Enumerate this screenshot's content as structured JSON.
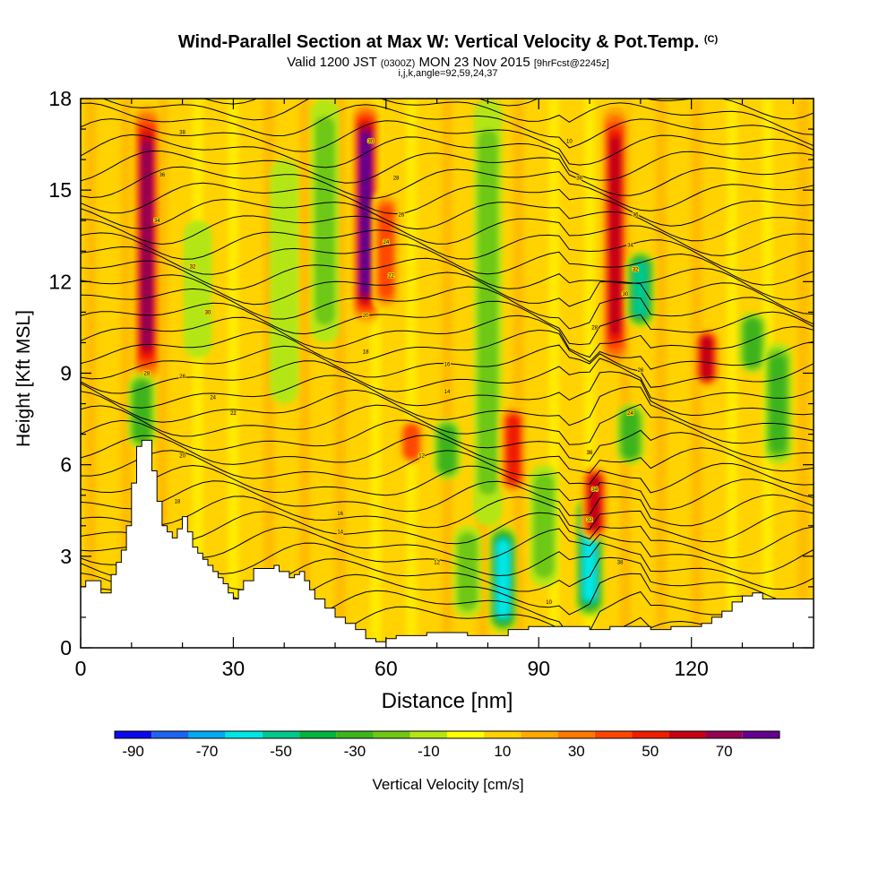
{
  "header": {
    "title": "Wind-Parallel Section at Max W: Vertical Velocity & Pot.Temp.",
    "title_tag": "(C)",
    "valid_prefix": "Valid 1200 JST",
    "valid_utc": "(0300Z)",
    "valid_date": "MON 23 Nov 2015",
    "forecast": "[9hrFcst@2245z]",
    "indices": "i,j,k,angle=92,59,24,37"
  },
  "chart_data": {
    "type": "heatmap",
    "xlabel": "Distance [nm]",
    "ylabel": "Height [Kft MSL]",
    "xlim": [
      0,
      144
    ],
    "ylim": [
      0,
      18
    ],
    "xticks": [
      "0",
      "30",
      "60",
      "90",
      "120"
    ],
    "yticks": [
      "0",
      "3",
      "6",
      "9",
      "12",
      "15",
      "18"
    ],
    "colorbar": {
      "label": "Vertical Velocity [cm/s]",
      "levels": [
        -90,
        -80,
        -70,
        -60,
        -50,
        -40,
        -30,
        -20,
        -10,
        0,
        10,
        20,
        30,
        40,
        50,
        60,
        70,
        80
      ],
      "tick_labels": [
        "-90",
        "-70",
        "-50",
        "-30",
        "-10",
        "10",
        "30",
        "50",
        "70"
      ],
      "colors": [
        "#0a0af0",
        "#1e64f0",
        "#00aaf0",
        "#00e6e6",
        "#00c88c",
        "#00b43c",
        "#3cb41e",
        "#6ec814",
        "#b4e614",
        "#ffff00",
        "#ffd200",
        "#ffaa00",
        "#ff7800",
        "#ff4600",
        "#f01e00",
        "#c80014",
        "#960050",
        "#64008c"
      ]
    },
    "terrain": [
      [
        0,
        2
      ],
      [
        1,
        2.2
      ],
      [
        2,
        2.2
      ],
      [
        4,
        1.8
      ],
      [
        6,
        2.4
      ],
      [
        7,
        2.8
      ],
      [
        8,
        3.2
      ],
      [
        9,
        4
      ],
      [
        10,
        5.4
      ],
      [
        11,
        6.6
      ],
      [
        12,
        6.8
      ],
      [
        13,
        6.8
      ],
      [
        14,
        5.8
      ],
      [
        15,
        4.8
      ],
      [
        16,
        4
      ],
      [
        17,
        3.8
      ],
      [
        18,
        3.6
      ],
      [
        19,
        3.9
      ],
      [
        20,
        4.3
      ],
      [
        21,
        3.8
      ],
      [
        22,
        3.3
      ],
      [
        23,
        3.1
      ],
      [
        24,
        2.9
      ],
      [
        25,
        2.7
      ],
      [
        26,
        2.5
      ],
      [
        27,
        2.3
      ],
      [
        28,
        2.1
      ],
      [
        29,
        1.8
      ],
      [
        30,
        1.6
      ],
      [
        31,
        1.9
      ],
      [
        32,
        2.2
      ],
      [
        34,
        2.6
      ],
      [
        36,
        2.6
      ],
      [
        38,
        2.7
      ],
      [
        39,
        2.5
      ],
      [
        41,
        2.3
      ],
      [
        42,
        2.4
      ],
      [
        43,
        2.5
      ],
      [
        44,
        2.2
      ],
      [
        45,
        1.9
      ],
      [
        46,
        1.6
      ],
      [
        48,
        1.3
      ],
      [
        50,
        1
      ],
      [
        52,
        0.8
      ],
      [
        54,
        0.6
      ],
      [
        56,
        0.3
      ],
      [
        58,
        0.2
      ],
      [
        60,
        0.3
      ],
      [
        62,
        0.4
      ],
      [
        64,
        0.4
      ],
      [
        66,
        0.4
      ],
      [
        68,
        0.5
      ],
      [
        70,
        0.5
      ],
      [
        72,
        0.5
      ],
      [
        76,
        0.4
      ],
      [
        80,
        0.4
      ],
      [
        84,
        0.6
      ],
      [
        88,
        0.7
      ],
      [
        92,
        0.7
      ],
      [
        96,
        0.7
      ],
      [
        100,
        0.6
      ],
      [
        104,
        0.7
      ],
      [
        106,
        0.7
      ],
      [
        110,
        0.7
      ],
      [
        112,
        0.6
      ],
      [
        114,
        0.6
      ],
      [
        116,
        0.7
      ],
      [
        118,
        0.7
      ],
      [
        120,
        0.7
      ],
      [
        122,
        0.8
      ],
      [
        124,
        1
      ],
      [
        126,
        1.2
      ],
      [
        128,
        1.5
      ],
      [
        130,
        1.7
      ],
      [
        132,
        1.8
      ],
      [
        134,
        1.6
      ],
      [
        136,
        1.6
      ],
      [
        138,
        1.6
      ],
      [
        140,
        1.6
      ],
      [
        142,
        1.6
      ],
      [
        144,
        1.6
      ]
    ],
    "velocity_cores": [
      {
        "x": 13,
        "y_from": 8.5,
        "y_to": 18,
        "w": 70
      },
      {
        "x": 12,
        "y_from": 6.5,
        "y_to": 9,
        "w": -35
      },
      {
        "x": 23,
        "y_from": 9.5,
        "y_to": 14,
        "w": -15
      },
      {
        "x": 40,
        "y_from": 8,
        "y_to": 16,
        "w": -15
      },
      {
        "x": 48,
        "y_from": 10,
        "y_to": 18,
        "w": -20
      },
      {
        "x": 56,
        "y_from": 10.5,
        "y_to": 18,
        "w": 85
      },
      {
        "x": 60,
        "y_from": 11,
        "y_to": 15,
        "w": 40
      },
      {
        "x": 65,
        "y_from": 6,
        "y_to": 7.5,
        "w": 45
      },
      {
        "x": 72,
        "y_from": 5.5,
        "y_to": 7.5,
        "w": -30
      },
      {
        "x": 76,
        "y_from": 1,
        "y_to": 4,
        "w": -25
      },
      {
        "x": 80,
        "y_from": 4,
        "y_to": 18,
        "w": -25
      },
      {
        "x": 83,
        "y_from": 0.5,
        "y_to": 4,
        "w": -60
      },
      {
        "x": 85,
        "y_from": 5,
        "y_to": 8,
        "w": 55
      },
      {
        "x": 91,
        "y_from": 2,
        "y_to": 6,
        "w": -20
      },
      {
        "x": 100,
        "y_from": 1,
        "y_to": 5,
        "w": -60
      },
      {
        "x": 101,
        "y_from": 3.5,
        "y_to": 6,
        "w": 60
      },
      {
        "x": 105,
        "y_from": 9,
        "y_to": 18,
        "w": 60
      },
      {
        "x": 110,
        "y_from": 10.5,
        "y_to": 13,
        "w": -55
      },
      {
        "x": 108,
        "y_from": 6,
        "y_to": 8,
        "w": -30
      },
      {
        "x": 123,
        "y_from": 8.5,
        "y_to": 10.5,
        "w": 60
      },
      {
        "x": 132,
        "y_from": 9,
        "y_to": 11,
        "w": -30
      },
      {
        "x": 137,
        "y_from": 6,
        "y_to": 10,
        "w": -30
      }
    ],
    "isentropes": {
      "count": 36,
      "label_values": [
        "38",
        "36",
        "34",
        "32",
        "30",
        "28",
        "26",
        "24",
        "22",
        "20",
        "18",
        "16",
        "14",
        "12",
        "10"
      ]
    }
  }
}
